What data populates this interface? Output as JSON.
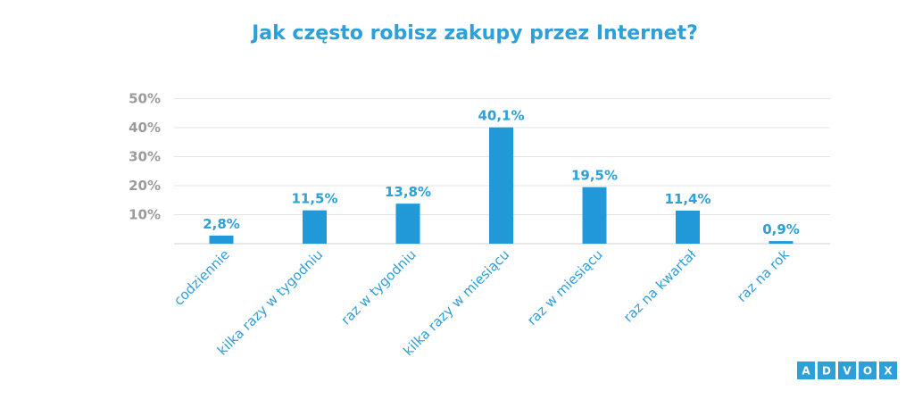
{
  "chart_data": {
    "type": "bar",
    "title": "Jak często robisz zakupy przez Internet?",
    "xlabel": "",
    "ylabel": "",
    "categories": [
      "codziennie",
      "kilka razy w tygodniu",
      "raz w tygodniu",
      "kilka razy w miesiącu",
      "raz w miesiącu",
      "raz na kwartał",
      "raz na rok"
    ],
    "values": [
      2.8,
      11.5,
      13.8,
      40.1,
      19.5,
      11.4,
      0.9
    ],
    "value_labels": [
      "2,8%",
      "11,5%",
      "13,8%",
      "40,1%",
      "19,5%",
      "11,4%",
      "0,9%"
    ],
    "ylim": [
      0,
      50
    ],
    "yticks": [
      10,
      20,
      30,
      40,
      50
    ],
    "ytick_labels": [
      "10%",
      "20%",
      "30%",
      "40%",
      "50%"
    ],
    "grid": true,
    "legend": "none",
    "colors": {
      "bar": "#2199d9",
      "title": "#2d9fd9",
      "tick": "#9b9b9b"
    }
  },
  "logo": {
    "letters": [
      "A",
      "D",
      "V",
      "O",
      "X"
    ]
  }
}
